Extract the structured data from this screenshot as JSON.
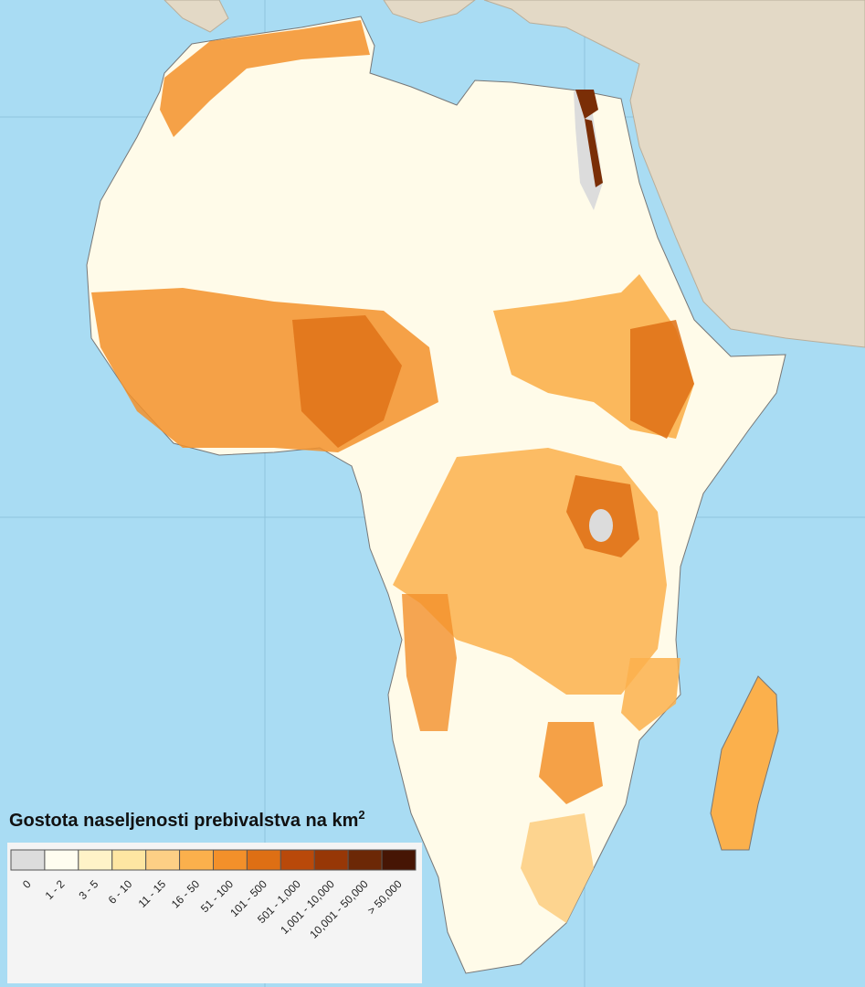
{
  "title": {
    "text": "Gostota naseljenosti prebivalstva na km",
    "superscript": "2"
  },
  "legend": {
    "items": [
      {
        "label": "0",
        "color": "#dcdcdc"
      },
      {
        "label": "1 - 2",
        "color": "#fffdf0"
      },
      {
        "label": "3 - 5",
        "color": "#fff3c8"
      },
      {
        "label": "6 - 10",
        "color": "#fee6a2"
      },
      {
        "label": "11 - 15",
        "color": "#fdcf85"
      },
      {
        "label": "16 - 50",
        "color": "#fbb04c"
      },
      {
        "label": "51 - 100",
        "color": "#f3902a"
      },
      {
        "label": "101 - 500",
        "color": "#de6f14"
      },
      {
        "label": "501 - 1,000",
        "color": "#b9490a"
      },
      {
        "label": "1,001 - 10,000",
        "color": "#973706"
      },
      {
        "label": "10,001 - 50,000",
        "color": "#6c2806"
      },
      {
        "label": "> 50,000",
        "color": "#461504"
      }
    ]
  }
}
